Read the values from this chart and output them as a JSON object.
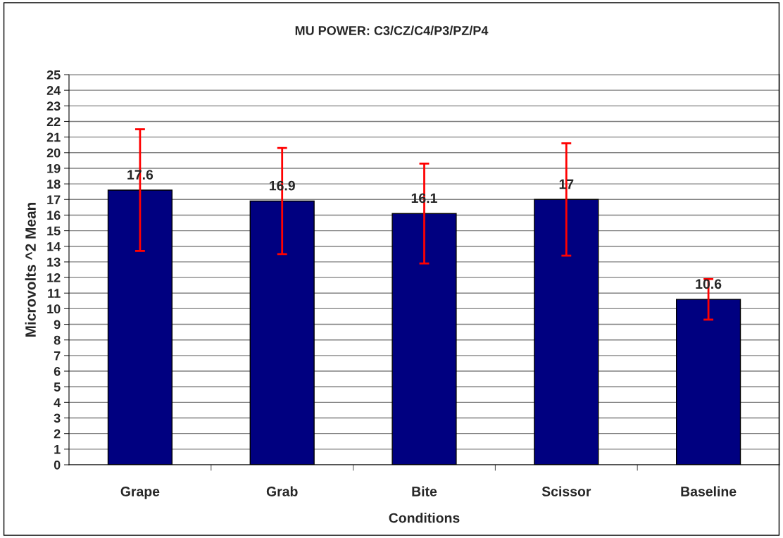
{
  "chart_data": {
    "type": "bar",
    "title": "MU POWER: C3/CZ/C4/P3/PZ/P4",
    "xlabel": "Conditions",
    "ylabel": "Microvolts ^2 Mean",
    "categories": [
      "Grape",
      "Grab",
      "Bite",
      "Scissor",
      "Baseline"
    ],
    "values": [
      17.6,
      16.9,
      16.1,
      17,
      10.6
    ],
    "color": "#000080",
    "errors": [
      [
        13.7,
        21.5
      ],
      [
        13.5,
        20.3
      ],
      [
        12.9,
        19.3
      ],
      [
        13.4,
        20.6
      ],
      [
        9.3,
        11.9
      ]
    ],
    "ylim": [
      0,
      25
    ],
    "yticks": [
      0,
      1,
      2,
      3,
      4,
      5,
      6,
      7,
      8,
      9,
      10,
      11,
      12,
      13,
      14,
      15,
      16,
      17,
      18,
      19,
      20,
      21,
      22,
      23,
      24,
      25
    ],
    "grid": "y",
    "data_labels": true,
    "legend": false
  }
}
